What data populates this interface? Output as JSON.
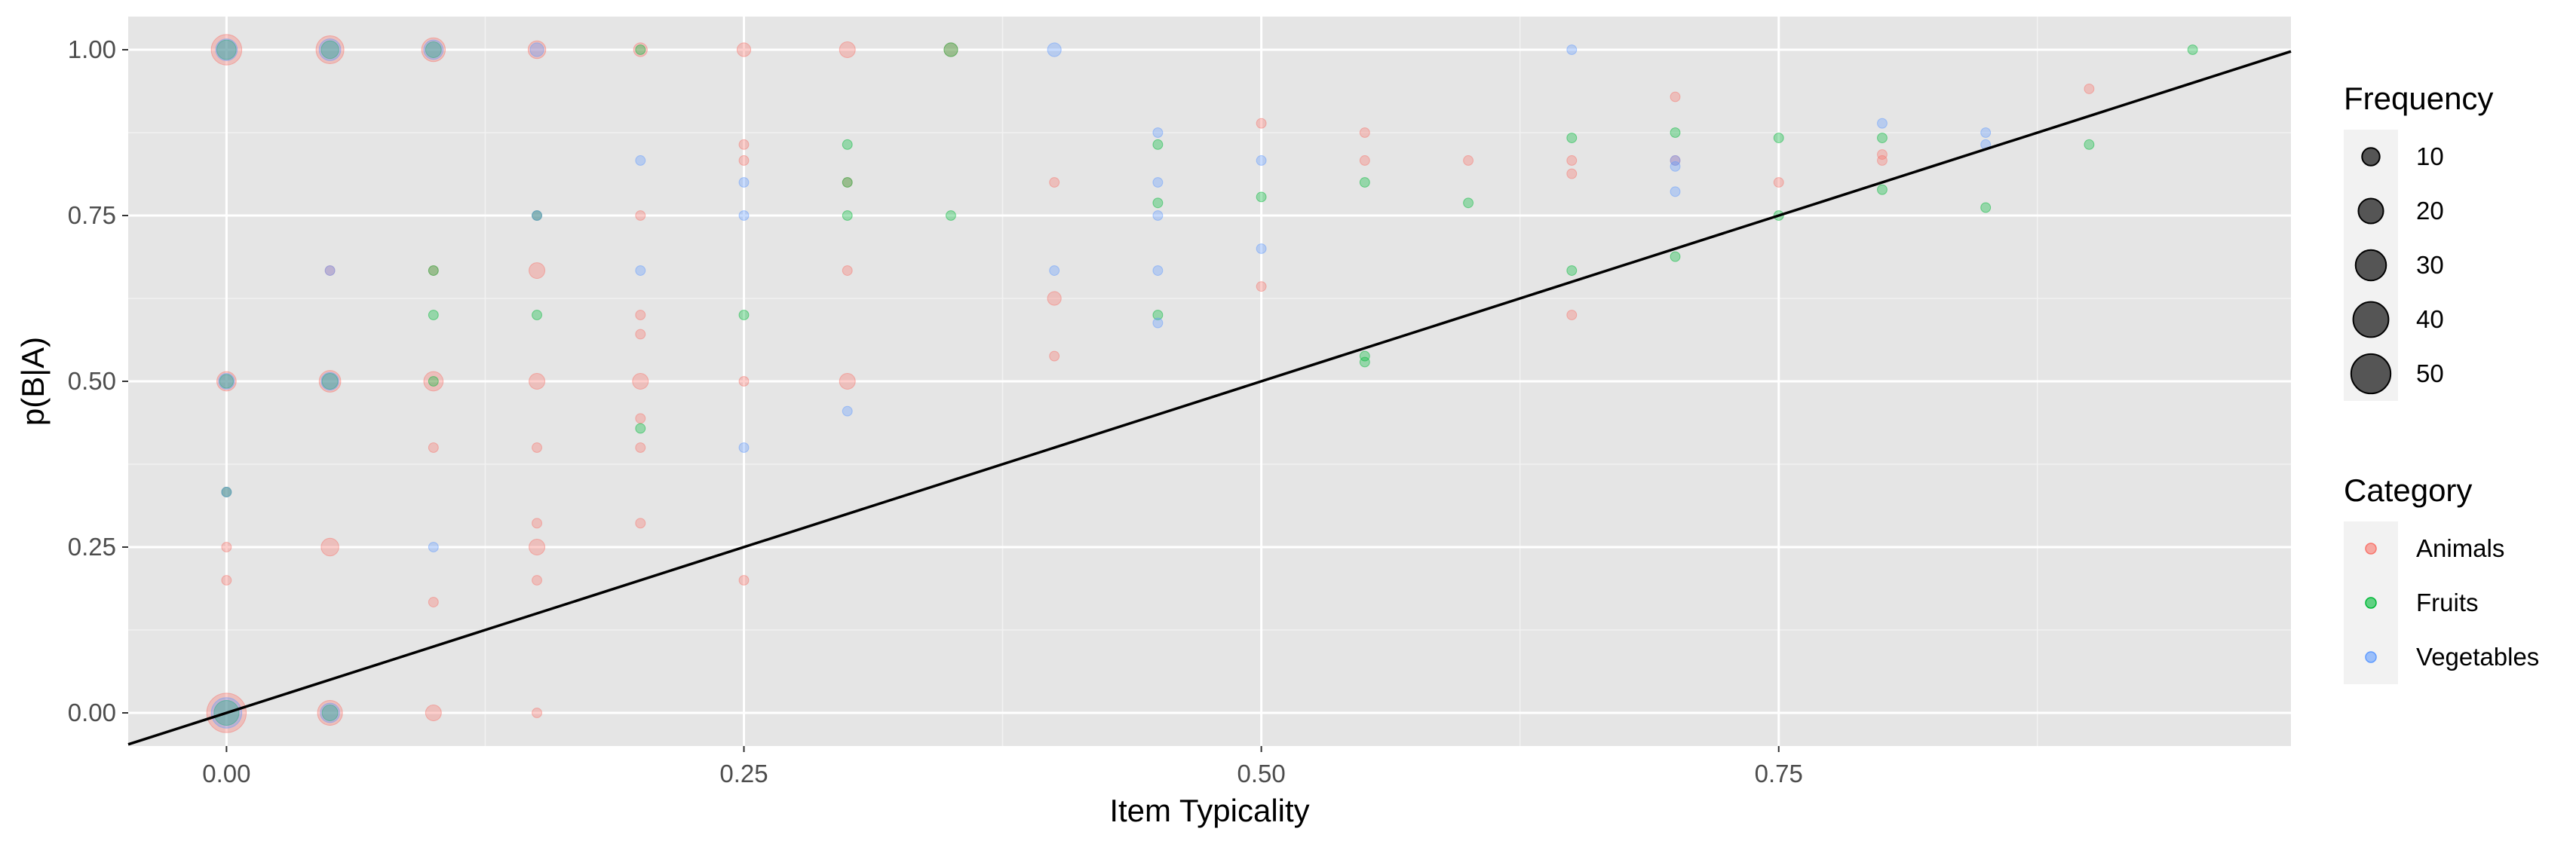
{
  "chart_data": {
    "type": "scatter",
    "xlabel": "Item Typicality",
    "ylabel": "p(B|A)",
    "xlim": [
      -0.0475,
      0.9975
    ],
    "ylim": [
      -0.05,
      1.05
    ],
    "x_ticks": [
      0.0,
      0.25,
      0.5,
      0.75
    ],
    "x_tick_labels": [
      "0.00",
      "0.25",
      "0.50",
      "0.75"
    ],
    "y_ticks": [
      0.0,
      0.25,
      0.5,
      0.75,
      1.0
    ],
    "y_tick_labels": [
      "0.00",
      "0.25",
      "0.50",
      "0.75",
      "1.00"
    ],
    "grid": true,
    "reference_line": {
      "slope": 1,
      "intercept": 0
    },
    "size_legend": {
      "title": "Frequency",
      "values": [
        10,
        20,
        30,
        40,
        50
      ]
    },
    "color_legend": {
      "title": "Category",
      "entries": [
        {
          "name": "Animals",
          "color": "#F8766D"
        },
        {
          "name": "Fruits",
          "color": "#00BA38"
        },
        {
          "name": "Vegetables",
          "color": "#619CFF"
        }
      ]
    },
    "series": [
      {
        "name": "Animals",
        "color": "#F8766D",
        "points": [
          {
            "x": 0.0,
            "y": 0.0,
            "size": 50
          },
          {
            "x": 0.0,
            "y": 1.0,
            "size": 30
          },
          {
            "x": 0.0,
            "y": 0.5,
            "size": 12
          },
          {
            "x": 0.0,
            "y": 0.25,
            "size": 3
          },
          {
            "x": 0.0,
            "y": 0.2,
            "size": 3
          },
          {
            "x": 0.0,
            "y": 0.333,
            "size": 3
          },
          {
            "x": 0.05,
            "y": 1.0,
            "size": 25
          },
          {
            "x": 0.05,
            "y": 0.5,
            "size": 15
          },
          {
            "x": 0.05,
            "y": 0.25,
            "size": 10
          },
          {
            "x": 0.05,
            "y": 0.0,
            "size": 20
          },
          {
            "x": 0.05,
            "y": 0.667,
            "size": 3
          },
          {
            "x": 0.1,
            "y": 1.0,
            "size": 18
          },
          {
            "x": 0.1,
            "y": 0.5,
            "size": 12
          },
          {
            "x": 0.1,
            "y": 0.4,
            "size": 3
          },
          {
            "x": 0.1,
            "y": 0.167,
            "size": 3
          },
          {
            "x": 0.1,
            "y": 0.0,
            "size": 8
          },
          {
            "x": 0.1,
            "y": 0.667,
            "size": 3
          },
          {
            "x": 0.15,
            "y": 1.0,
            "size": 10
          },
          {
            "x": 0.15,
            "y": 0.667,
            "size": 8
          },
          {
            "x": 0.15,
            "y": 0.5,
            "size": 8
          },
          {
            "x": 0.15,
            "y": 0.4,
            "size": 3
          },
          {
            "x": 0.15,
            "y": 0.286,
            "size": 3
          },
          {
            "x": 0.15,
            "y": 0.25,
            "size": 8
          },
          {
            "x": 0.15,
            "y": 0.2,
            "size": 3
          },
          {
            "x": 0.15,
            "y": 0.0,
            "size": 3
          },
          {
            "x": 0.15,
            "y": 0.75,
            "size": 3
          },
          {
            "x": 0.2,
            "y": 1.0,
            "size": 6
          },
          {
            "x": 0.2,
            "y": 0.75,
            "size": 3
          },
          {
            "x": 0.2,
            "y": 0.6,
            "size": 3
          },
          {
            "x": 0.2,
            "y": 0.571,
            "size": 3
          },
          {
            "x": 0.2,
            "y": 0.5,
            "size": 8
          },
          {
            "x": 0.2,
            "y": 0.444,
            "size": 3
          },
          {
            "x": 0.2,
            "y": 0.4,
            "size": 3
          },
          {
            "x": 0.2,
            "y": 0.286,
            "size": 3
          },
          {
            "x": 0.25,
            "y": 1.0,
            "size": 6
          },
          {
            "x": 0.25,
            "y": 0.857,
            "size": 3
          },
          {
            "x": 0.25,
            "y": 0.833,
            "size": 3
          },
          {
            "x": 0.25,
            "y": 0.5,
            "size": 3
          },
          {
            "x": 0.25,
            "y": 0.2,
            "size": 3
          },
          {
            "x": 0.3,
            "y": 1.0,
            "size": 8
          },
          {
            "x": 0.3,
            "y": 0.8,
            "size": 3
          },
          {
            "x": 0.3,
            "y": 0.667,
            "size": 3
          },
          {
            "x": 0.3,
            "y": 0.5,
            "size": 8
          },
          {
            "x": 0.35,
            "y": 1.0,
            "size": 6
          },
          {
            "x": 0.4,
            "y": 0.8,
            "size": 3
          },
          {
            "x": 0.4,
            "y": 0.625,
            "size": 6
          },
          {
            "x": 0.4,
            "y": 0.538,
            "size": 3
          },
          {
            "x": 0.5,
            "y": 0.889,
            "size": 3
          },
          {
            "x": 0.5,
            "y": 0.643,
            "size": 3
          },
          {
            "x": 0.55,
            "y": 0.875,
            "size": 3
          },
          {
            "x": 0.55,
            "y": 0.833,
            "size": 3
          },
          {
            "x": 0.6,
            "y": 0.833,
            "size": 3
          },
          {
            "x": 0.65,
            "y": 0.833,
            "size": 3
          },
          {
            "x": 0.65,
            "y": 0.813,
            "size": 3
          },
          {
            "x": 0.65,
            "y": 0.6,
            "size": 3
          },
          {
            "x": 0.7,
            "y": 0.929,
            "size": 3
          },
          {
            "x": 0.7,
            "y": 0.833,
            "size": 3
          },
          {
            "x": 0.75,
            "y": 0.8,
            "size": 3
          },
          {
            "x": 0.8,
            "y": 0.842,
            "size": 3
          },
          {
            "x": 0.8,
            "y": 0.833,
            "size": 3
          },
          {
            "x": 0.9,
            "y": 0.941,
            "size": 3
          }
        ]
      },
      {
        "name": "Fruits",
        "color": "#00BA38",
        "points": [
          {
            "x": 0.0,
            "y": 0.0,
            "size": 20
          },
          {
            "x": 0.0,
            "y": 1.0,
            "size": 12
          },
          {
            "x": 0.0,
            "y": 0.5,
            "size": 6
          },
          {
            "x": 0.0,
            "y": 0.333,
            "size": 3
          },
          {
            "x": 0.05,
            "y": 1.0,
            "size": 10
          },
          {
            "x": 0.05,
            "y": 0.5,
            "size": 8
          },
          {
            "x": 0.05,
            "y": 0.0,
            "size": 8
          },
          {
            "x": 0.1,
            "y": 1.0,
            "size": 8
          },
          {
            "x": 0.1,
            "y": 0.667,
            "size": 3
          },
          {
            "x": 0.1,
            "y": 0.6,
            "size": 3
          },
          {
            "x": 0.1,
            "y": 0.5,
            "size": 3
          },
          {
            "x": 0.15,
            "y": 0.75,
            "size": 3
          },
          {
            "x": 0.15,
            "y": 0.6,
            "size": 3
          },
          {
            "x": 0.2,
            "y": 1.0,
            "size": 3
          },
          {
            "x": 0.2,
            "y": 0.429,
            "size": 3
          },
          {
            "x": 0.25,
            "y": 0.6,
            "size": 3
          },
          {
            "x": 0.3,
            "y": 0.857,
            "size": 3
          },
          {
            "x": 0.3,
            "y": 0.8,
            "size": 3
          },
          {
            "x": 0.3,
            "y": 0.75,
            "size": 3
          },
          {
            "x": 0.35,
            "y": 1.0,
            "size": 6
          },
          {
            "x": 0.35,
            "y": 0.75,
            "size": 3
          },
          {
            "x": 0.45,
            "y": 0.857,
            "size": 3
          },
          {
            "x": 0.45,
            "y": 0.769,
            "size": 3
          },
          {
            "x": 0.45,
            "y": 0.6,
            "size": 3
          },
          {
            "x": 0.5,
            "y": 0.778,
            "size": 3
          },
          {
            "x": 0.55,
            "y": 0.8,
            "size": 3
          },
          {
            "x": 0.55,
            "y": 0.538,
            "size": 3
          },
          {
            "x": 0.55,
            "y": 0.529,
            "size": 3
          },
          {
            "x": 0.6,
            "y": 0.769,
            "size": 3
          },
          {
            "x": 0.65,
            "y": 0.867,
            "size": 3
          },
          {
            "x": 0.65,
            "y": 0.667,
            "size": 3
          },
          {
            "x": 0.7,
            "y": 0.875,
            "size": 3
          },
          {
            "x": 0.7,
            "y": 0.688,
            "size": 3
          },
          {
            "x": 0.75,
            "y": 0.867,
            "size": 3
          },
          {
            "x": 0.75,
            "y": 0.75,
            "size": 3
          },
          {
            "x": 0.8,
            "y": 0.867,
            "size": 3
          },
          {
            "x": 0.8,
            "y": 0.789,
            "size": 3
          },
          {
            "x": 0.85,
            "y": 0.762,
            "size": 3
          },
          {
            "x": 0.9,
            "y": 0.857,
            "size": 3
          },
          {
            "x": 0.95,
            "y": 1.0,
            "size": 3
          }
        ]
      },
      {
        "name": "Vegetables",
        "color": "#619CFF",
        "points": [
          {
            "x": 0.0,
            "y": 0.0,
            "size": 30
          },
          {
            "x": 0.0,
            "y": 1.0,
            "size": 15
          },
          {
            "x": 0.0,
            "y": 0.5,
            "size": 8
          },
          {
            "x": 0.0,
            "y": 0.333,
            "size": 3
          },
          {
            "x": 0.05,
            "y": 1.0,
            "size": 15
          },
          {
            "x": 0.05,
            "y": 0.5,
            "size": 10
          },
          {
            "x": 0.05,
            "y": 0.0,
            "size": 12
          },
          {
            "x": 0.05,
            "y": 0.667,
            "size": 3
          },
          {
            "x": 0.1,
            "y": 1.0,
            "size": 12
          },
          {
            "x": 0.1,
            "y": 0.25,
            "size": 3
          },
          {
            "x": 0.15,
            "y": 1.0,
            "size": 6
          },
          {
            "x": 0.15,
            "y": 0.75,
            "size": 3
          },
          {
            "x": 0.2,
            "y": 0.833,
            "size": 3
          },
          {
            "x": 0.2,
            "y": 0.667,
            "size": 3
          },
          {
            "x": 0.25,
            "y": 0.8,
            "size": 3
          },
          {
            "x": 0.25,
            "y": 0.75,
            "size": 3
          },
          {
            "x": 0.25,
            "y": 0.4,
            "size": 3
          },
          {
            "x": 0.3,
            "y": 0.455,
            "size": 3
          },
          {
            "x": 0.4,
            "y": 1.0,
            "size": 6
          },
          {
            "x": 0.4,
            "y": 0.667,
            "size": 3
          },
          {
            "x": 0.45,
            "y": 0.875,
            "size": 3
          },
          {
            "x": 0.45,
            "y": 0.8,
            "size": 3
          },
          {
            "x": 0.45,
            "y": 0.75,
            "size": 3
          },
          {
            "x": 0.45,
            "y": 0.667,
            "size": 3
          },
          {
            "x": 0.45,
            "y": 0.588,
            "size": 3
          },
          {
            "x": 0.5,
            "y": 0.833,
            "size": 3
          },
          {
            "x": 0.5,
            "y": 0.7,
            "size": 3
          },
          {
            "x": 0.65,
            "y": 1.0,
            "size": 3
          },
          {
            "x": 0.7,
            "y": 0.833,
            "size": 3
          },
          {
            "x": 0.7,
            "y": 0.824,
            "size": 3
          },
          {
            "x": 0.7,
            "y": 0.786,
            "size": 3
          },
          {
            "x": 0.8,
            "y": 0.889,
            "size": 3
          },
          {
            "x": 0.85,
            "y": 0.875,
            "size": 3
          },
          {
            "x": 0.85,
            "y": 0.857,
            "size": 3
          }
        ]
      }
    ]
  }
}
